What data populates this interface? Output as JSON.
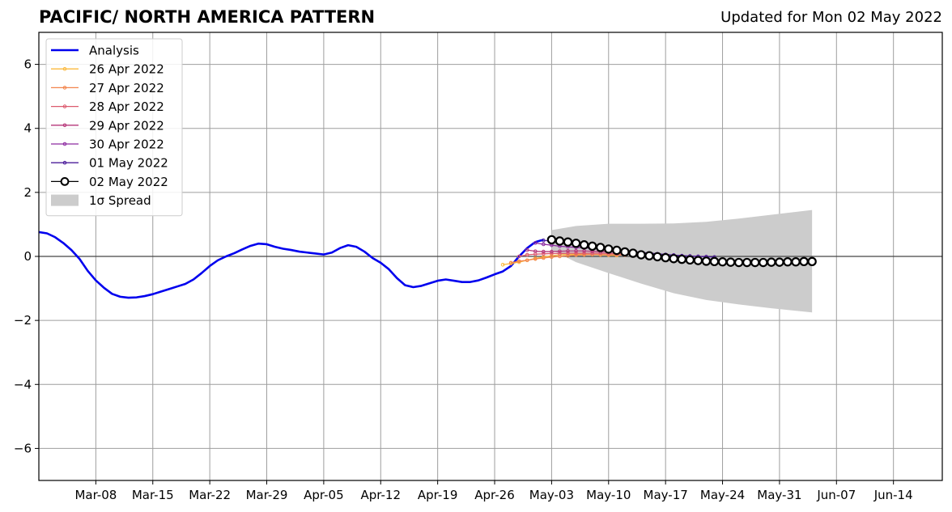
{
  "title": "PACIFIC/ NORTH AMERICA PATTERN",
  "updated_text": "Updated for Mon 02 May 2022",
  "chart_data": {
    "type": "line",
    "title": "PACIFIC/ NORTH AMERICA PATTERN",
    "xlabel": "",
    "ylabel": "",
    "x_axis_type": "date",
    "xlim": [
      "2022-03-01",
      "2022-06-20"
    ],
    "ylim": [
      -7,
      7
    ],
    "y_ticks": [
      -6,
      -4,
      -2,
      0,
      2,
      4,
      6
    ],
    "y_tick_labels": [
      "−6",
      "−4",
      "−2",
      "0",
      "2",
      "4",
      "6"
    ],
    "x_ticks": [
      "2022-03-08",
      "2022-03-15",
      "2022-03-22",
      "2022-03-29",
      "2022-04-05",
      "2022-04-12",
      "2022-04-19",
      "2022-04-26",
      "2022-05-03",
      "2022-05-10",
      "2022-05-17",
      "2022-05-24",
      "2022-05-31",
      "2022-06-07",
      "2022-06-14"
    ],
    "x_tick_labels": [
      "Mar-08",
      "Mar-15",
      "Mar-22",
      "Mar-29",
      "Apr-05",
      "Apr-12",
      "Apr-19",
      "Apr-26",
      "May-03",
      "May-10",
      "May-17",
      "May-24",
      "May-31",
      "Jun-07",
      "Jun-14"
    ],
    "grid": true,
    "legend_position": "top-left",
    "series": [
      {
        "name": "Analysis",
        "color": "#0000ee",
        "values": [
          [
            "2022-03-01",
            0.76
          ],
          [
            "2022-03-02",
            0.72
          ],
          [
            "2022-03-03",
            0.6
          ],
          [
            "2022-03-04",
            0.42
          ],
          [
            "2022-03-05",
            0.2
          ],
          [
            "2022-03-06",
            -0.08
          ],
          [
            "2022-03-07",
            -0.45
          ],
          [
            "2022-03-08",
            -0.75
          ],
          [
            "2022-03-09",
            -0.98
          ],
          [
            "2022-03-10",
            -1.17
          ],
          [
            "2022-03-11",
            -1.26
          ],
          [
            "2022-03-12",
            -1.29
          ],
          [
            "2022-03-13",
            -1.28
          ],
          [
            "2022-03-14",
            -1.24
          ],
          [
            "2022-03-15",
            -1.18
          ],
          [
            "2022-03-16",
            -1.1
          ],
          [
            "2022-03-17",
            -1.02
          ],
          [
            "2022-03-18",
            -0.94
          ],
          [
            "2022-03-19",
            -0.86
          ],
          [
            "2022-03-20",
            -0.72
          ],
          [
            "2022-03-21",
            -0.52
          ],
          [
            "2022-03-22",
            -0.3
          ],
          [
            "2022-03-23",
            -0.12
          ],
          [
            "2022-03-24",
            0.0
          ],
          [
            "2022-03-25",
            0.1
          ],
          [
            "2022-03-26",
            0.22
          ],
          [
            "2022-03-27",
            0.33
          ],
          [
            "2022-03-28",
            0.4
          ],
          [
            "2022-03-29",
            0.38
          ],
          [
            "2022-03-30",
            0.3
          ],
          [
            "2022-03-31",
            0.24
          ],
          [
            "2022-04-01",
            0.2
          ],
          [
            "2022-04-02",
            0.15
          ],
          [
            "2022-04-03",
            0.12
          ],
          [
            "2022-04-04",
            0.09
          ],
          [
            "2022-04-05",
            0.06
          ],
          [
            "2022-04-06",
            0.12
          ],
          [
            "2022-04-07",
            0.26
          ],
          [
            "2022-04-08",
            0.35
          ],
          [
            "2022-04-09",
            0.3
          ],
          [
            "2022-04-10",
            0.15
          ],
          [
            "2022-04-11",
            -0.05
          ],
          [
            "2022-04-12",
            -0.2
          ],
          [
            "2022-04-13",
            -0.4
          ],
          [
            "2022-04-14",
            -0.68
          ],
          [
            "2022-04-15",
            -0.9
          ],
          [
            "2022-04-16",
            -0.96
          ],
          [
            "2022-04-17",
            -0.92
          ],
          [
            "2022-04-18",
            -0.84
          ],
          [
            "2022-04-19",
            -0.76
          ],
          [
            "2022-04-20",
            -0.72
          ],
          [
            "2022-04-21",
            -0.76
          ],
          [
            "2022-04-22",
            -0.8
          ],
          [
            "2022-04-23",
            -0.8
          ],
          [
            "2022-04-24",
            -0.75
          ],
          [
            "2022-04-25",
            -0.66
          ],
          [
            "2022-04-26",
            -0.56
          ],
          [
            "2022-04-27",
            -0.47
          ],
          [
            "2022-04-28",
            -0.3
          ],
          [
            "2022-04-29",
            0.0
          ],
          [
            "2022-04-30",
            0.26
          ],
          [
            "2022-05-01",
            0.45
          ],
          [
            "2022-05-02",
            0.52
          ]
        ]
      },
      {
        "name": "26 Apr 2022",
        "color": "#fbb93d",
        "start": "2022-04-27",
        "values": [
          -0.26,
          -0.22,
          -0.18,
          -0.12,
          -0.06,
          -0.02,
          0.02,
          0.05,
          0.06,
          0.07,
          0.07,
          0.06,
          0.05,
          0.04,
          0.03
        ]
      },
      {
        "name": "27 Apr 2022",
        "color": "#f2844b",
        "start": "2022-04-28",
        "values": [
          -0.2,
          -0.15,
          -0.12,
          -0.08,
          -0.05,
          -0.02,
          0.0,
          0.02,
          0.04,
          0.05,
          0.06,
          0.06,
          0.05,
          0.05,
          0.04
        ]
      },
      {
        "name": "28 Apr 2022",
        "color": "#dc5a6e",
        "start": "2022-04-29",
        "values": [
          0.0,
          0.05,
          0.07,
          0.08,
          0.09,
          0.09,
          0.1,
          0.1,
          0.1,
          0.1,
          0.1,
          0.09,
          0.08,
          0.07,
          0.06
        ]
      },
      {
        "name": "29 Apr 2022",
        "color": "#b63679",
        "start": "2022-04-30",
        "values": [
          0.2,
          0.16,
          0.15,
          0.15,
          0.16,
          0.17,
          0.17,
          0.17,
          0.16,
          0.15,
          0.14,
          0.13,
          0.12,
          0.1,
          0.08,
          0.06
        ]
      },
      {
        "name": "30 Apr 2022",
        "color": "#8c29a0",
        "start": "2022-05-01",
        "values": [
          0.42,
          0.38,
          0.35,
          0.32,
          0.3,
          0.28,
          0.27,
          0.25,
          0.23,
          0.21,
          0.19,
          0.17,
          0.15,
          0.13,
          0.1,
          0.08,
          0.06,
          0.04,
          0.02,
          0.01,
          0.0,
          -0.01
        ]
      },
      {
        "name": "01 May 2022",
        "color": "#4b1b9a",
        "start": "2022-05-02",
        "values": [
          0.5,
          0.48,
          0.45,
          0.42,
          0.38,
          0.34,
          0.3,
          0.27,
          0.24,
          0.21,
          0.18,
          0.15,
          0.12,
          0.1,
          0.08,
          0.06,
          0.04,
          0.02,
          0.01,
          0.0,
          -0.01,
          -0.02
        ]
      },
      {
        "name": "02 May 2022",
        "color": "#000000",
        "start": "2022-05-03",
        "values": [
          0.52,
          0.48,
          0.45,
          0.41,
          0.36,
          0.32,
          0.28,
          0.23,
          0.19,
          0.14,
          0.1,
          0.05,
          0.02,
          -0.01,
          -0.04,
          -0.07,
          -0.09,
          -0.11,
          -0.13,
          -0.15,
          -0.16,
          -0.17,
          -0.18,
          -0.19,
          -0.19,
          -0.19,
          -0.19,
          -0.18,
          -0.18,
          -0.17,
          -0.17,
          -0.16,
          -0.16
        ]
      }
    ],
    "spread": {
      "name": "1σ Spread",
      "color": "#cccccc",
      "x": [
        "2022-05-03",
        "2022-05-06",
        "2022-05-10",
        "2022-05-14",
        "2022-05-18",
        "2022-05-22",
        "2022-05-26",
        "2022-05-30",
        "2022-06-04"
      ],
      "upper": [
        0.82,
        0.95,
        1.02,
        1.02,
        1.03,
        1.08,
        1.18,
        1.3,
        1.45
      ],
      "lower": [
        0.2,
        -0.18,
        -0.52,
        -0.85,
        -1.15,
        -1.36,
        -1.5,
        -1.62,
        -1.75
      ]
    }
  }
}
